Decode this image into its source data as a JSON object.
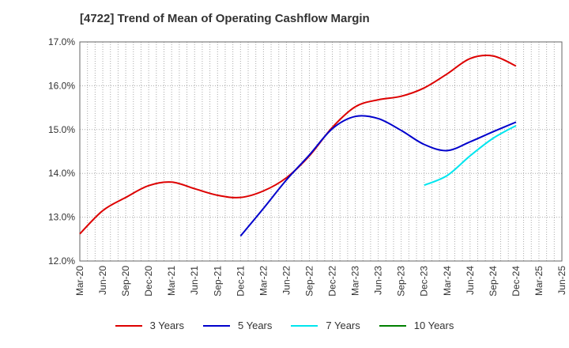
{
  "title": "[4722]  Trend of Mean of Operating Cashflow Margin",
  "colors": {
    "grid": "#aaaaaa",
    "axis": "#666666",
    "text": "#333333"
  },
  "chart_data": {
    "type": "line",
    "title": "[4722]  Trend of Mean of Operating Cashflow Margin",
    "xlabel": "",
    "ylabel": "",
    "x": [
      "Mar-20",
      "Jun-20",
      "Sep-20",
      "Dec-20",
      "Mar-21",
      "Jun-21",
      "Sep-21",
      "Dec-21",
      "Mar-22",
      "Jun-22",
      "Sep-22",
      "Dec-22",
      "Mar-23",
      "Jun-23",
      "Sep-23",
      "Dec-23",
      "Mar-24",
      "Jun-24",
      "Sep-24",
      "Dec-24",
      "Mar-25",
      "Jun-25"
    ],
    "y_ticks": [
      "12.0%",
      "13.0%",
      "14.0%",
      "15.0%",
      "16.0%",
      "17.0%"
    ],
    "ylim": [
      12.0,
      17.0
    ],
    "grid": true,
    "legend_position": "bottom",
    "series": [
      {
        "name": "3 Years",
        "color": "#dd0000",
        "values": [
          12.62,
          13.15,
          13.45,
          13.72,
          13.8,
          13.65,
          13.5,
          13.45,
          13.6,
          13.9,
          14.4,
          15.05,
          15.52,
          15.68,
          15.76,
          15.95,
          16.27,
          16.62,
          16.68,
          16.45,
          null,
          null
        ]
      },
      {
        "name": "5 Years",
        "color": "#0000cc",
        "values": [
          null,
          null,
          null,
          null,
          null,
          null,
          null,
          12.57,
          13.2,
          13.85,
          14.42,
          15.02,
          15.3,
          15.25,
          14.98,
          14.66,
          14.52,
          14.72,
          14.95,
          15.17,
          null,
          null
        ]
      },
      {
        "name": "7 Years",
        "color": "#00e5ee",
        "values": [
          null,
          null,
          null,
          null,
          null,
          null,
          null,
          null,
          null,
          null,
          null,
          null,
          null,
          null,
          null,
          13.73,
          13.95,
          14.4,
          14.8,
          15.09,
          null,
          null
        ]
      },
      {
        "name": "10 Years",
        "color": "#008000",
        "values": [
          null,
          null,
          null,
          null,
          null,
          null,
          null,
          null,
          null,
          null,
          null,
          null,
          null,
          null,
          null,
          null,
          null,
          null,
          null,
          null,
          null,
          null
        ]
      }
    ]
  }
}
